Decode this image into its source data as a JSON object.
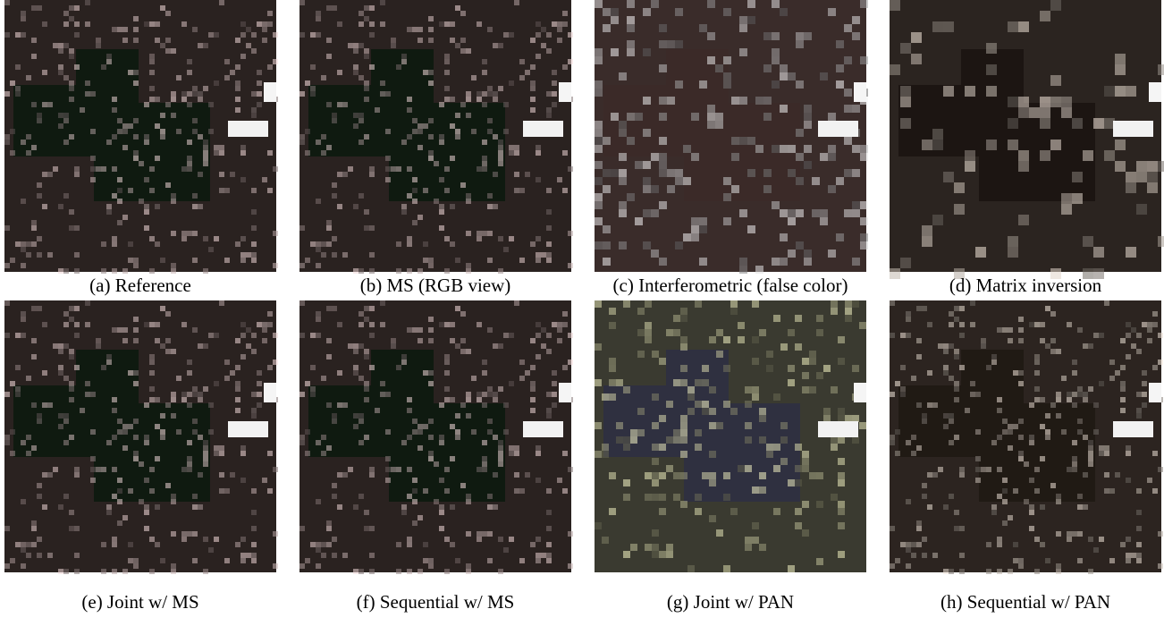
{
  "figure": {
    "panels": [
      {
        "caption": "(a) Reference"
      },
      {
        "caption": "(b) MS (RGB view)"
      },
      {
        "caption": "(c) Interferometric (false color)"
      },
      {
        "caption": "(d) Matrix inversion"
      },
      {
        "caption": "(e) Joint w/ MS"
      },
      {
        "caption": "(f) Sequential w/ MS"
      },
      {
        "caption": "(g) Joint w/ PAN"
      },
      {
        "caption": "(h) Sequential w/ PAN"
      }
    ]
  }
}
